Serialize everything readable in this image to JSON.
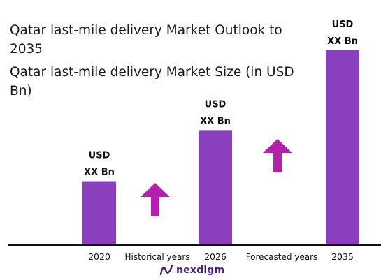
{
  "header": {
    "title": "Qatar last-mile delivery Market Outlook to 2035",
    "subtitle": "Qatar last-mile delivery Market Size (in USD Bn)"
  },
  "brand": {
    "name": "nexdigm",
    "icon": "nexdigm-logo-icon"
  },
  "colors": {
    "bar": "#8a3fbf",
    "arrow": "#b41fae",
    "axis": "#111111"
  },
  "chart_data": {
    "type": "bar",
    "title": "Qatar last-mile delivery Market Size (in USD Bn)",
    "categories": [
      "2020",
      "2026",
      "2035"
    ],
    "values": [
      1.0,
      1.8,
      3.05
    ],
    "value_labels": [
      {
        "line1": "USD",
        "line2": "XX Bn"
      },
      {
        "line1": "USD",
        "line2": "XX Bn"
      },
      {
        "line1": "USD",
        "line2": "XX Bn"
      }
    ],
    "period_labels": [
      "Historical years",
      "Forecasted years"
    ],
    "ylim": [
      0,
      3.05
    ],
    "grid": false,
    "legend": "none"
  }
}
